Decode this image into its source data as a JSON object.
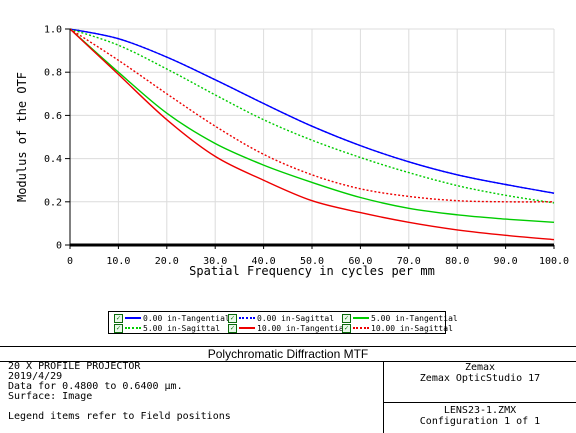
{
  "chart_data": {
    "type": "line",
    "xlabel": "Spatial Frequency in cycles per mm",
    "ylabel": "Modulus of the OTF",
    "xlim": [
      0,
      100
    ],
    "ylim": [
      0,
      1.0
    ],
    "xticks": [
      "0",
      "10.0",
      "20.0",
      "30.0",
      "40.0",
      "50.0",
      "60.0",
      "70.0",
      "80.0",
      "90.0",
      "100.0"
    ],
    "yticks": [
      "0",
      "0.2",
      "0.4",
      "0.6",
      "0.8",
      "1.0"
    ],
    "grid": true,
    "x": [
      0,
      10,
      20,
      30,
      40,
      50,
      60,
      70,
      80,
      90,
      100
    ],
    "series": [
      {
        "name": "0.00 in-Tangential",
        "color": "#0000ff",
        "dash": "solid",
        "values": [
          1.0,
          0.955,
          0.87,
          0.765,
          0.655,
          0.55,
          0.46,
          0.385,
          0.325,
          0.28,
          0.24
        ]
      },
      {
        "name": "0.00 in-Sagittal",
        "color": "#0000ff",
        "dash": "dotted",
        "values": [
          1.0,
          0.955,
          0.87,
          0.765,
          0.655,
          0.55,
          0.46,
          0.385,
          0.325,
          0.28,
          0.24
        ]
      },
      {
        "name": "5.00 in-Tangential",
        "color": "#00cc00",
        "dash": "solid",
        "values": [
          1.0,
          0.8,
          0.61,
          0.47,
          0.37,
          0.29,
          0.22,
          0.17,
          0.14,
          0.12,
          0.105
        ]
      },
      {
        "name": "5.00 in-Sagittal",
        "color": "#00cc00",
        "dash": "dotted",
        "values": [
          1.0,
          0.925,
          0.815,
          0.695,
          0.58,
          0.485,
          0.405,
          0.335,
          0.275,
          0.23,
          0.195
        ]
      },
      {
        "name": "10.00 in-Tangential",
        "color": "#ee0000",
        "dash": "solid",
        "values": [
          1.0,
          0.79,
          0.58,
          0.41,
          0.3,
          0.205,
          0.15,
          0.105,
          0.07,
          0.045,
          0.025
        ]
      },
      {
        "name": "10.00 in-Sagittal",
        "color": "#ee0000",
        "dash": "dotted",
        "values": [
          1.0,
          0.855,
          0.7,
          0.55,
          0.42,
          0.325,
          0.26,
          0.225,
          0.205,
          0.2,
          0.2
        ]
      }
    ]
  },
  "info": {
    "title": "Polychromatic Diffraction MTF",
    "left_lines": [
      "20 X PROFILE PROJECTOR",
      "2019/4/29",
      "Data for 0.4800 to 0.6400 µm.",
      "Surface: Image",
      "",
      "Legend items refer to Field positions"
    ],
    "right_top_lines": [
      "Zemax",
      "Zemax OpticStudio 17"
    ],
    "right_bottom_lines": [
      "LENS23-1.ZMX",
      "Configuration 1 of 1"
    ]
  }
}
